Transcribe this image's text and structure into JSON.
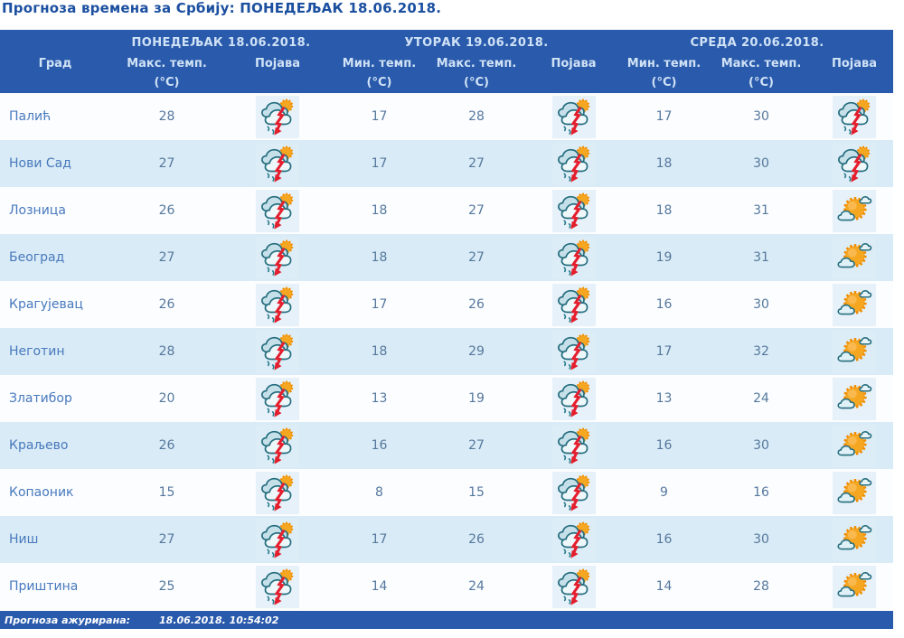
{
  "title": "Прогноза времена за Србију: ПОНЕДЕЉАК  18.06.2018.",
  "table": {
    "day_groups": [
      {
        "label": "ПОНЕДЕЉАК  18.06.2018."
      },
      {
        "label": "УТОРАК  19.06.2018."
      },
      {
        "label": "СРЕДА  20.06.2018."
      }
    ],
    "columns": {
      "city": "Град",
      "max_temp": "Макс. темп.",
      "min_temp": "Мин. темп.",
      "phenomenon": "Појава",
      "unit": "(°C)"
    },
    "rows": [
      {
        "city": "Палић",
        "mon_max": 28,
        "mon_icon": "thunderstorm",
        "tue_min": 17,
        "tue_max": 28,
        "tue_icon": "thunderstorm",
        "wed_min": 17,
        "wed_max": 30,
        "wed_icon": "thunderstorm"
      },
      {
        "city": "Нови Сад",
        "mon_max": 27,
        "mon_icon": "thunderstorm",
        "tue_min": 17,
        "tue_max": 27,
        "tue_icon": "thunderstorm",
        "wed_min": 18,
        "wed_max": 30,
        "wed_icon": "thunderstorm"
      },
      {
        "city": "Лозница",
        "mon_max": 26,
        "mon_icon": "thunderstorm",
        "tue_min": 18,
        "tue_max": 27,
        "tue_icon": "thunderstorm",
        "wed_min": 18,
        "wed_max": 31,
        "wed_icon": "partly-cloudy"
      },
      {
        "city": "Београд",
        "mon_max": 27,
        "mon_icon": "thunderstorm",
        "tue_min": 18,
        "tue_max": 27,
        "tue_icon": "thunderstorm",
        "wed_min": 19,
        "wed_max": 31,
        "wed_icon": "partly-cloudy"
      },
      {
        "city": "Крагујевац",
        "mon_max": 26,
        "mon_icon": "thunderstorm",
        "tue_min": 17,
        "tue_max": 26,
        "tue_icon": "thunderstorm",
        "wed_min": 16,
        "wed_max": 30,
        "wed_icon": "partly-cloudy"
      },
      {
        "city": "Неготин",
        "mon_max": 28,
        "mon_icon": "thunderstorm",
        "tue_min": 18,
        "tue_max": 29,
        "tue_icon": "thunderstorm",
        "wed_min": 17,
        "wed_max": 32,
        "wed_icon": "partly-cloudy"
      },
      {
        "city": "Златибор",
        "mon_max": 20,
        "mon_icon": "thunderstorm",
        "tue_min": 13,
        "tue_max": 19,
        "tue_icon": "thunderstorm",
        "wed_min": 13,
        "wed_max": 24,
        "wed_icon": "partly-cloudy"
      },
      {
        "city": "Краљево",
        "mon_max": 26,
        "mon_icon": "thunderstorm",
        "tue_min": 16,
        "tue_max": 27,
        "tue_icon": "thunderstorm",
        "wed_min": 16,
        "wed_max": 30,
        "wed_icon": "partly-cloudy"
      },
      {
        "city": "Копаоник",
        "mon_max": 15,
        "mon_icon": "thunderstorm",
        "tue_min": 8,
        "tue_max": 15,
        "tue_icon": "thunderstorm",
        "wed_min": 9,
        "wed_max": 16,
        "wed_icon": "partly-cloudy"
      },
      {
        "city": "Ниш",
        "mon_max": 27,
        "mon_icon": "thunderstorm",
        "tue_min": 17,
        "tue_max": 26,
        "tue_icon": "thunderstorm",
        "wed_min": 16,
        "wed_max": 30,
        "wed_icon": "partly-cloudy"
      },
      {
        "city": "Приштина",
        "mon_max": 25,
        "mon_icon": "thunderstorm",
        "tue_min": 14,
        "tue_max": 24,
        "tue_icon": "thunderstorm",
        "wed_min": 14,
        "wed_max": 28,
        "wed_icon": "partly-cloudy"
      }
    ]
  },
  "footer": {
    "label": "Прогноза ажурирана:",
    "timestamp": "18.06.2018.  10:54:02"
  },
  "colors": {
    "header_blue": "#2a5aab",
    "header_text": "#cfe2f6",
    "title_text": "#1b4fa0",
    "row_light": "#fbfdff",
    "row_alt": "#d9ebf6",
    "city_text": "#4879bd",
    "temp_text": "#56789d",
    "lightning_red": "#e41e2d",
    "sun_orange": "#f6a722",
    "cloud_outline": "#256e7e"
  }
}
